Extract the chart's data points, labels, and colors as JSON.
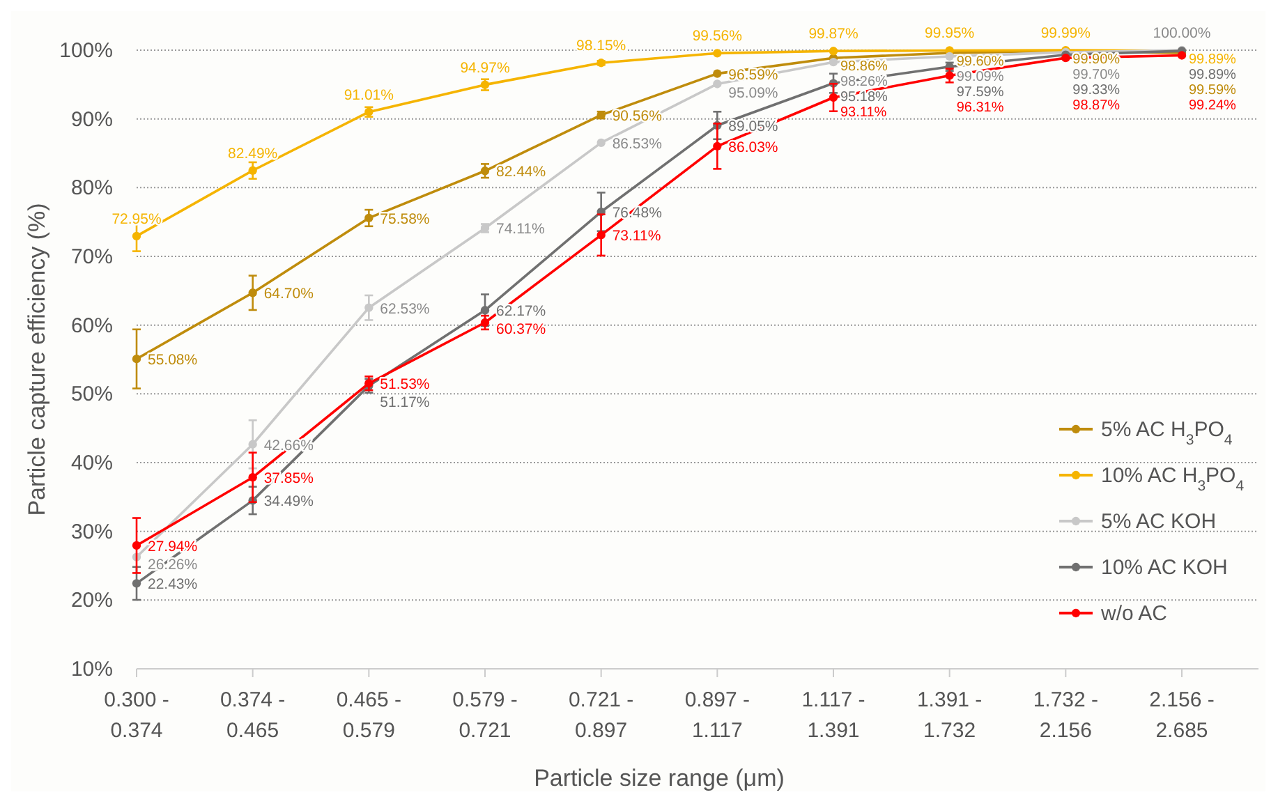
{
  "chart_data": {
    "type": "line",
    "xlabel": "Particle size range (μm)",
    "ylabel": "Particle capture efficiency (%)",
    "categories": [
      "0.300 - 0.374",
      "0.374 - 0.465",
      "0.465 - 0.579",
      "0.579 - 0.721",
      "0.721 - 0.897",
      "0.897 - 1.117",
      "1.117 - 1.391",
      "1.391 - 1.732",
      "1.732 - 2.156",
      "2.156 - 2.685"
    ],
    "ylim": [
      10,
      100
    ],
    "yticks": [
      {
        "value": 10,
        "label": "10%"
      },
      {
        "value": 20,
        "label": "20%"
      },
      {
        "value": 30,
        "label": "30%"
      },
      {
        "value": 40,
        "label": "40%"
      },
      {
        "value": 50,
        "label": "50%"
      },
      {
        "value": 60,
        "label": "60%"
      },
      {
        "value": 70,
        "label": "70%"
      },
      {
        "value": 80,
        "label": "80%"
      },
      {
        "value": 90,
        "label": "90%"
      },
      {
        "value": 100,
        "label": "100%"
      }
    ],
    "grid": "y",
    "legend": "right",
    "marker": "circle",
    "line_style": "solid",
    "series": [
      {
        "name": "5% AC H$_{3}$PO$_{4}$",
        "color": "#bf8c0c",
        "values": [
          55.08,
          64.7,
          75.58,
          82.44,
          90.56,
          96.59,
          98.86,
          99.6,
          99.9,
          99.59
        ],
        "errors": [
          4.3,
          2.5,
          1.2,
          1,
          0.5,
          null,
          null,
          null,
          null,
          null
        ],
        "value_labels": [
          "55.08%",
          "64.70%",
          "75.58%",
          "82.44%",
          "90.56%",
          "96.59%",
          "98.86%",
          "99.60%",
          "99.90%",
          "99.59%"
        ]
      },
      {
        "name": "10% AC H$_{3}$PO$_{4}$",
        "color": "#f5b400",
        "values": [
          72.95,
          82.49,
          91.01,
          94.97,
          98.15,
          99.56,
          99.87,
          99.95,
          99.99,
          99.89
        ],
        "errors": [
          2.2,
          1.2,
          0.7,
          0.8,
          0.3,
          null,
          null,
          null,
          null,
          null
        ],
        "value_labels": [
          "72.95%",
          "82.49%",
          "91.01%",
          "94.97%",
          "98.15%",
          "99.56%",
          "99.87%",
          "99.95%",
          "99.99%",
          "99.89%"
        ]
      },
      {
        "name": "5% AC KOH",
        "color": "#c8c8c8",
        "values": [
          26.26,
          42.66,
          62.53,
          74.11,
          86.53,
          95.09,
          98.26,
          99.09,
          99.7,
          100.0
        ],
        "errors": [
          null,
          3.5,
          1.8,
          0.6,
          null,
          null,
          null,
          null,
          null,
          null
        ],
        "value_labels": [
          "26.26%",
          "42.66%",
          "62.53%",
          "74.11%",
          "86.53%",
          "95.09%",
          "98.26%",
          "99.09%",
          "99.70%",
          "100.00%"
        ]
      },
      {
        "name": "10% AC KOH",
        "color": "#707070",
        "values": [
          22.43,
          34.49,
          51.17,
          62.17,
          76.48,
          89.05,
          95.18,
          97.59,
          99.33,
          99.89
        ],
        "errors": [
          2.4,
          2,
          1,
          2.3,
          2.8,
          2,
          1.4,
          0.6,
          null,
          null
        ],
        "value_labels": [
          "22.43%",
          "34.49%",
          "51.17%",
          "62.17%",
          "76.48%",
          "89.05%",
          "95.18%",
          "97.59%",
          "99.33%",
          "99.89%"
        ]
      },
      {
        "name": "w/o AC",
        "color": "#ff0000",
        "values": [
          27.94,
          37.85,
          51.53,
          60.37,
          73.11,
          86.03,
          93.11,
          96.31,
          98.87,
          99.24
        ],
        "errors": [
          4,
          3.6,
          1,
          1,
          3,
          3.3,
          2,
          1,
          null,
          null
        ],
        "value_labels": [
          "27.94%",
          "37.85%",
          "51.53%",
          "60.37%",
          "73.11%",
          "86.03%",
          "93.11%",
          "96.31%",
          "98.87%",
          "99.24%"
        ]
      }
    ]
  }
}
